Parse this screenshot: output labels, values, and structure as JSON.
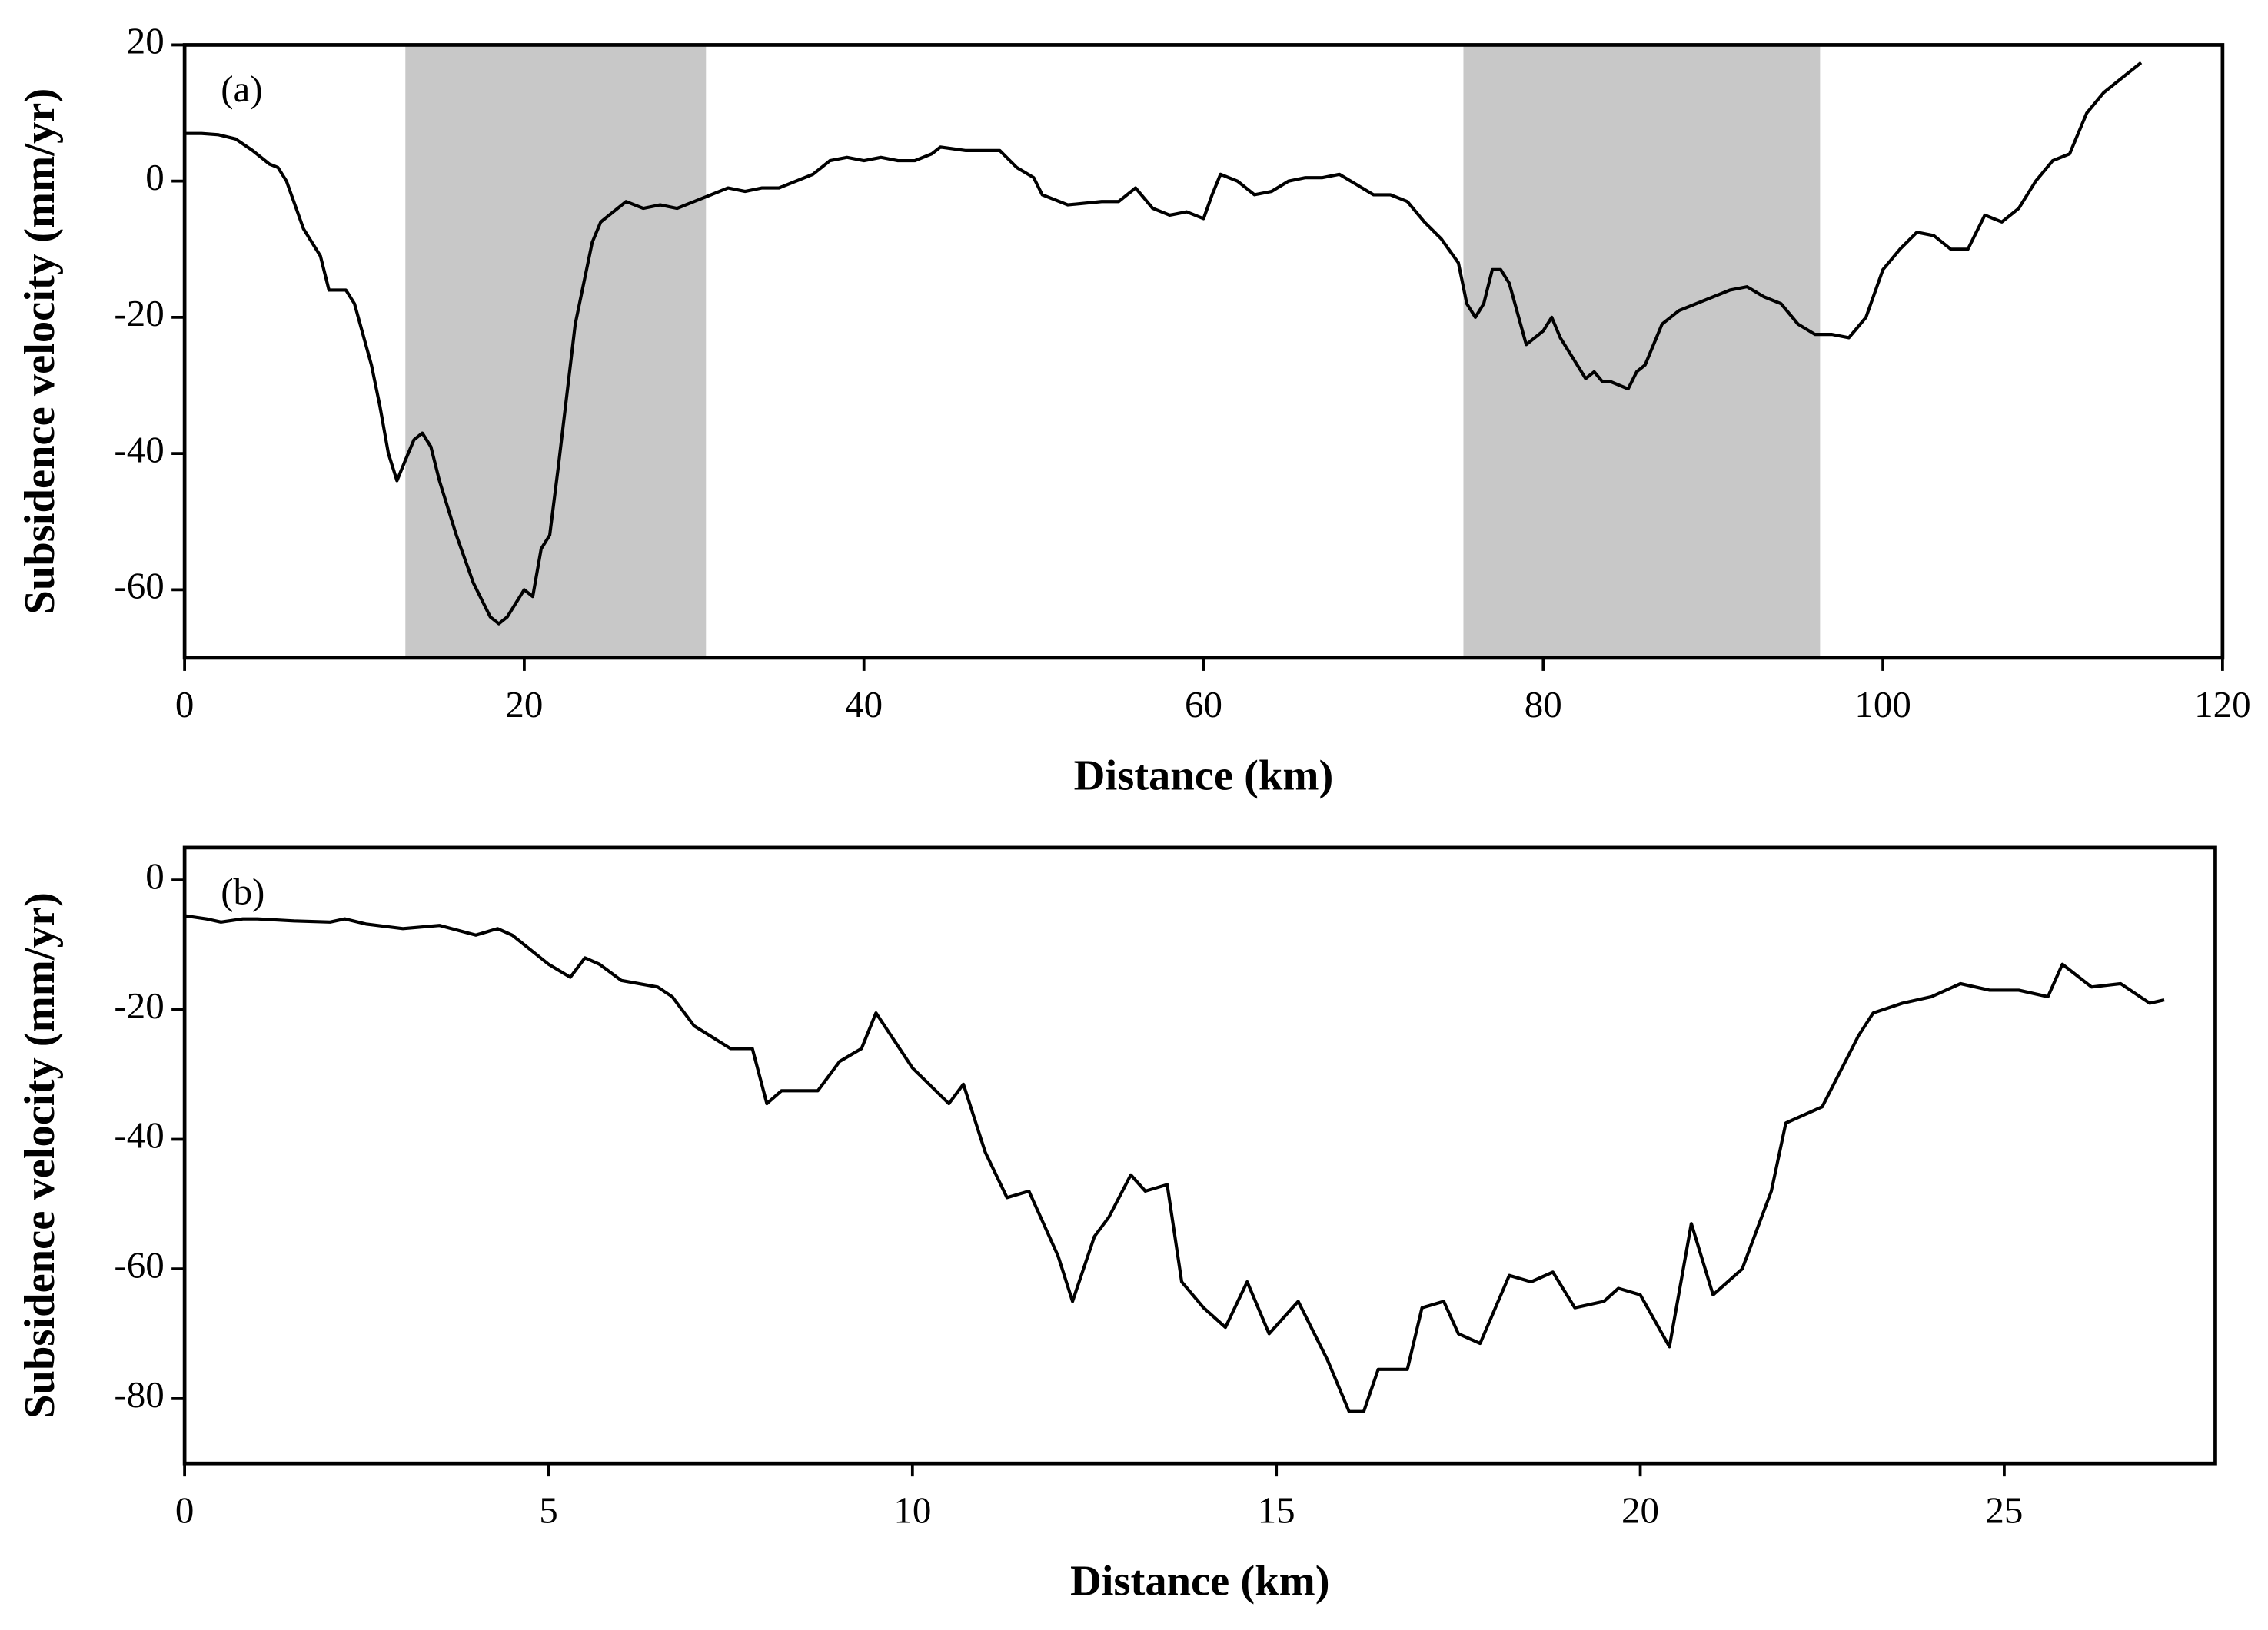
{
  "chart_data": [
    {
      "type": "line",
      "annotation": "(a)",
      "xlabel": "Distance (km)",
      "ylabel": "Subsidence velocity (mm/yr)",
      "xlim": [
        0,
        120
      ],
      "ylim": [
        -70,
        20
      ],
      "xticks": [
        0,
        20,
        40,
        60,
        80,
        100,
        120
      ],
      "yticks": [
        -60,
        -40,
        -20,
        0,
        20
      ],
      "shaded_spans": [
        [
          13,
          30.7
        ],
        [
          75.3,
          96.3
        ]
      ],
      "shade_color": "#c8c8c8",
      "series": [
        {
          "color": "#000000",
          "x": [
            0,
            1,
            2,
            3,
            4,
            5,
            5.5,
            6,
            7,
            8,
            8.5,
            9.5,
            10,
            11,
            11.5,
            12,
            12.5,
            13,
            13.5,
            14,
            14.5,
            15,
            16,
            17,
            18,
            18.5,
            19,
            20,
            20.5,
            21,
            21.5,
            22,
            23,
            24,
            24.5,
            25,
            26,
            27,
            28,
            29,
            30,
            31,
            32,
            33,
            34,
            35,
            36,
            37,
            38,
            39,
            40,
            41,
            42,
            43,
            44,
            44.5,
            46,
            47,
            48,
            49,
            50,
            50.5,
            52,
            54,
            55,
            56,
            57,
            58,
            59,
            60,
            60.5,
            61,
            62,
            63,
            64,
            65,
            66,
            67,
            68,
            69,
            70,
            71,
            72,
            73,
            74,
            75,
            75.5,
            76,
            76.5,
            77,
            77.5,
            78,
            79,
            80,
            80.5,
            81,
            82,
            82.5,
            83,
            83.5,
            84,
            85,
            85.5,
            86,
            87,
            88,
            89,
            90,
            91,
            92,
            93,
            94,
            95,
            96,
            97,
            98,
            99,
            100,
            101,
            102,
            103,
            104,
            105,
            106,
            107,
            108,
            109,
            110,
            111,
            112,
            113,
            114,
            115.2
          ],
          "values": [
            7,
            7,
            6.8,
            6.2,
            4.5,
            2.5,
            2,
            0,
            -7,
            -11,
            -16,
            -16,
            -18,
            -27,
            -33,
            -40,
            -44,
            -41,
            -38,
            -37,
            -39,
            -44,
            -52,
            -59,
            -64,
            -65,
            -64,
            -60,
            -61,
            -54,
            -52,
            -42,
            -21,
            -9,
            -6,
            -5,
            -3,
            -4,
            -3.5,
            -4,
            -3,
            -2,
            -1,
            -1.5,
            -1,
            -1,
            0,
            1,
            3,
            3.5,
            3,
            3.5,
            3,
            3,
            4,
            5,
            4.5,
            4.5,
            4.5,
            2,
            0.5,
            -2,
            -3.5,
            -3,
            -3,
            -1,
            -4,
            -5,
            -4.5,
            -5.5,
            -2,
            1,
            0,
            -2,
            -1.5,
            0,
            0.5,
            0.5,
            1,
            -0.5,
            -2,
            -2,
            -3,
            -6,
            -8.5,
            -12,
            -18,
            -20,
            -18,
            -13,
            -13,
            -15,
            -24,
            -22,
            -20,
            -23,
            -27,
            -29,
            -28,
            -29.5,
            -29.5,
            -30.5,
            -28,
            -27,
            -21,
            -19,
            -18,
            -17,
            -16,
            -15.5,
            -17,
            -18,
            -21,
            -22.5,
            -22.5,
            -23,
            -20,
            -13,
            -10,
            -7.5,
            -8,
            -10,
            -10,
            -5,
            -6,
            -4,
            0,
            3,
            4,
            10,
            13,
            15,
            17.4
          ]
        }
      ]
    },
    {
      "type": "line",
      "annotation": "(b)",
      "xlabel": "Distance (km)",
      "ylabel": "Subsidence velocity (mm/yr)",
      "xlim": [
        0,
        27.9
      ],
      "ylim": [
        -90,
        5
      ],
      "xticks": [
        0,
        5,
        10,
        15,
        20,
        25
      ],
      "yticks": [
        -80,
        -60,
        -40,
        -20,
        0
      ],
      "series": [
        {
          "color": "#000000",
          "x": [
            0,
            0.3,
            0.5,
            0.8,
            1,
            1.5,
            2,
            2.2,
            2.5,
            3,
            3.5,
            4,
            4.3,
            4.5,
            5,
            5.3,
            5.5,
            5.7,
            6,
            6.5,
            6.7,
            7,
            7.5,
            7.8,
            8,
            8.2,
            8.7,
            9,
            9.3,
            9.5,
            10,
            10.5,
            10.7,
            11,
            11.3,
            11.6,
            12,
            12.2,
            12.5,
            12.7,
            13,
            13.2,
            13.5,
            13.7,
            14,
            14.3,
            14.6,
            14.9,
            15.3,
            15.7,
            16,
            16.2,
            16.4,
            16.8,
            17,
            17.3,
            17.5,
            17.8,
            18.2,
            18.5,
            18.8,
            19.1,
            19.5,
            19.7,
            20,
            20.4,
            20.7,
            21,
            21.4,
            21.8,
            22,
            22.5,
            23,
            23.2,
            23.6,
            24,
            24.4,
            24.8,
            25.2,
            25.6,
            25.8,
            26.2,
            26.6,
            27,
            27.2
          ],
          "values": [
            -5.5,
            -6,
            -6.5,
            -6,
            -6,
            -6.3,
            -6.5,
            -6,
            -6.8,
            -7.5,
            -7,
            -8.5,
            -7.5,
            -8.5,
            -13,
            -15,
            -12,
            -13,
            -15.5,
            -16.5,
            -18,
            -22.5,
            -26,
            -26,
            -34.5,
            -32.5,
            -32.5,
            -28,
            -26,
            -20.5,
            -29,
            -34.5,
            -31.5,
            -42,
            -49,
            -48,
            -58,
            -65,
            -55,
            -52,
            -45.5,
            -48,
            -47,
            -62,
            -66,
            -69,
            -62,
            -70,
            -65,
            -74,
            -82,
            -82,
            -75.5,
            -75.5,
            -66,
            -65,
            -70,
            -71.5,
            -61,
            -62,
            -60.5,
            -66,
            -65,
            -63,
            -64,
            -72,
            -53,
            -64,
            -60,
            -48,
            -37.5,
            -35,
            -24,
            -20.5,
            -19,
            -18,
            -16,
            -17,
            -17,
            -18,
            -13,
            -16.5,
            -16,
            -19,
            -18.5
          ]
        }
      ]
    }
  ]
}
